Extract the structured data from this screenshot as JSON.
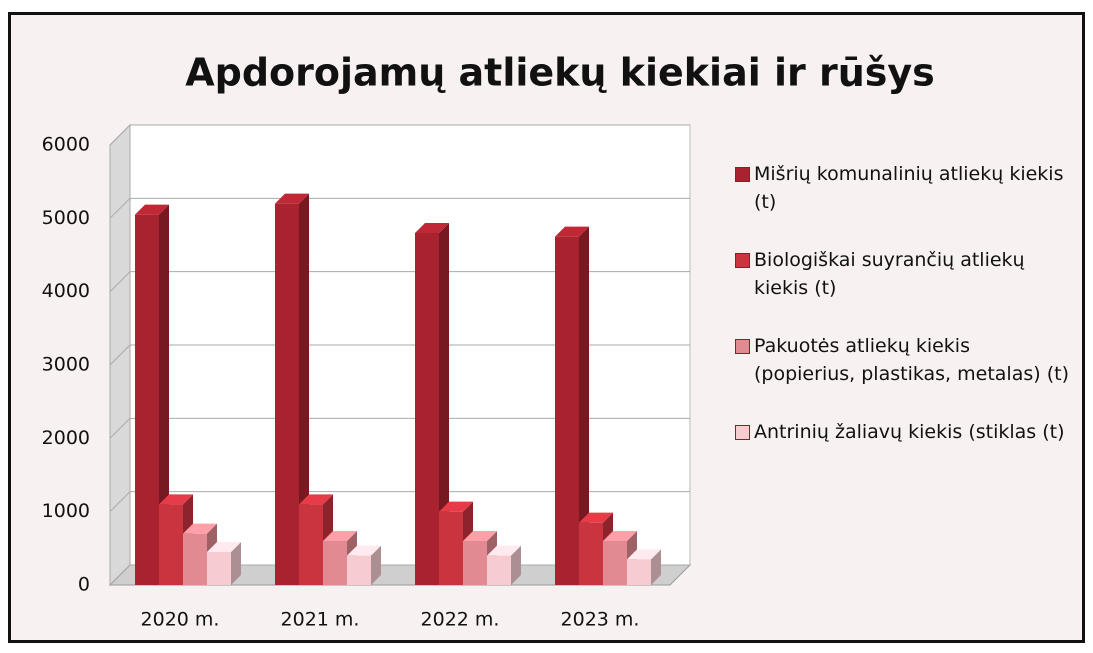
{
  "chart_data": {
    "type": "bar",
    "title": "Apdorojamų atliekų kiekiai ir rūšys",
    "categories": [
      "2020 m.",
      "2021 m.",
      "2022 m.",
      "2023 m."
    ],
    "series": [
      {
        "name": "Mišrių komunalinių atliekų kiekis (t)",
        "color": "#a8232f",
        "values": [
          5050,
          5200,
          4800,
          4750
        ]
      },
      {
        "name": "Biologiškai suyrančių atliekų kiekis (t)",
        "color": "#c9343f",
        "values": [
          1100,
          1100,
          1000,
          850
        ]
      },
      {
        "name": "Pakuotės atliekų kiekis (popierius, plastikas, metalas) (t)",
        "color": "#e28a92",
        "values": [
          700,
          600,
          600,
          600
        ]
      },
      {
        "name": "Antrinių žaliavų kiekis (stiklas (t)",
        "color": "#f6ccd0",
        "values": [
          450,
          400,
          400,
          350
        ]
      }
    ],
    "ylim": [
      0,
      6000
    ],
    "yticks": [
      0,
      1000,
      2000,
      3000,
      4000,
      5000,
      6000
    ],
    "grid": true,
    "legend": "right"
  }
}
